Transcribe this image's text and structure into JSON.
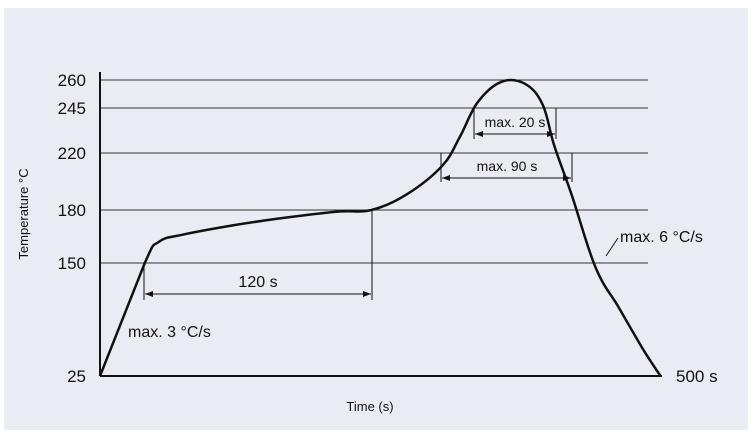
{
  "chart_data": {
    "type": "line",
    "title": "",
    "xlabel": "Time (s)",
    "ylabel": "Temperature °C",
    "y_ticks": [
      "25",
      "150",
      "180",
      "220",
      "245",
      "260"
    ],
    "x_end_label": "500 s",
    "ylim": [
      25,
      260
    ],
    "grid": "horizontal",
    "series": [
      {
        "points": [
          [
            0,
            25
          ],
          [
            38,
            150
          ],
          [
            50,
            162
          ],
          [
            70,
            166
          ],
          [
            110,
            171
          ],
          [
            150,
            175
          ],
          [
            200,
            179
          ],
          [
            230,
            180
          ],
          [
            260,
            191
          ],
          [
            290,
            211
          ],
          [
            305,
            229
          ],
          [
            320,
            248
          ],
          [
            340,
            259
          ],
          [
            360,
            258
          ],
          [
            375,
            247
          ],
          [
            385,
            224
          ],
          [
            400,
            190
          ],
          [
            420,
            145
          ],
          [
            440,
            100
          ],
          [
            460,
            55
          ],
          [
            475,
            25
          ]
        ]
      }
    ],
    "annotations": [
      {
        "text": "max. 3 °C/s"
      },
      {
        "text": "120 s"
      },
      {
        "text": "max. 20 s"
      },
      {
        "text": "max. 90 s"
      },
      {
        "text": "max. 6 °C/s"
      }
    ]
  }
}
